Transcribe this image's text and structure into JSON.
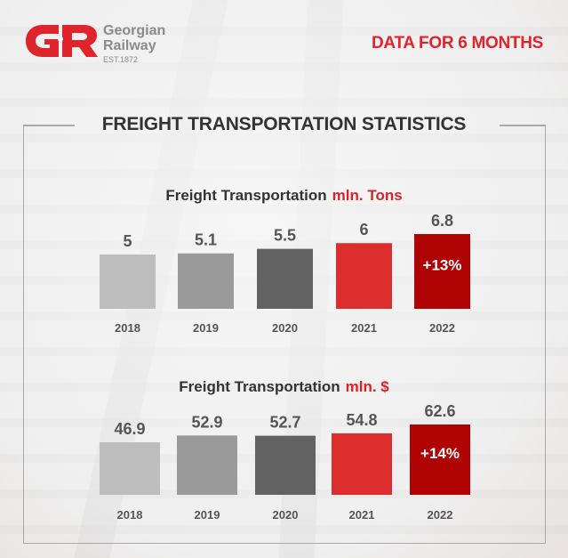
{
  "brand": {
    "logo_mark": "GR",
    "name_line1": "Georgian",
    "name_line2": "Railway",
    "established": "EST.1872",
    "accent_color": "#e0242b"
  },
  "header": {
    "period_label": "DATA FOR 6 MONTHS"
  },
  "title": "FREIGHT TRANSPORTATION STATISTICS",
  "chart_data": [
    {
      "type": "bar",
      "title": "Freight Transportation",
      "unit": "mln. Tons",
      "categories": [
        "2018",
        "2019",
        "2020",
        "2021",
        "2022"
      ],
      "values": [
        5,
        5.1,
        5.5,
        6,
        6.8
      ],
      "value_labels": [
        "5",
        "5.1",
        "5.5",
        "6",
        "6.8"
      ],
      "colors": [
        "#bdbdbd",
        "#9a9a9a",
        "#626262",
        "#dc2e2e",
        "#b00404"
      ],
      "annotation": {
        "category": "2022",
        "text": "+13%"
      },
      "xlabel": "",
      "ylabel": "",
      "grid": false
    },
    {
      "type": "bar",
      "title": "Freight Transportation",
      "unit": "mln. $",
      "categories": [
        "2018",
        "2019",
        "2020",
        "2021",
        "2022"
      ],
      "values": [
        46.9,
        52.9,
        52.7,
        54.8,
        62.6
      ],
      "value_labels": [
        "46.9",
        "52.9",
        "52.7",
        "54.8",
        "62.6"
      ],
      "colors": [
        "#bdbdbd",
        "#9a9a9a",
        "#626262",
        "#dc2e2e",
        "#b00404"
      ],
      "annotation": {
        "category": "2022",
        "text": "+14%"
      },
      "xlabel": "",
      "ylabel": "",
      "grid": false
    }
  ]
}
